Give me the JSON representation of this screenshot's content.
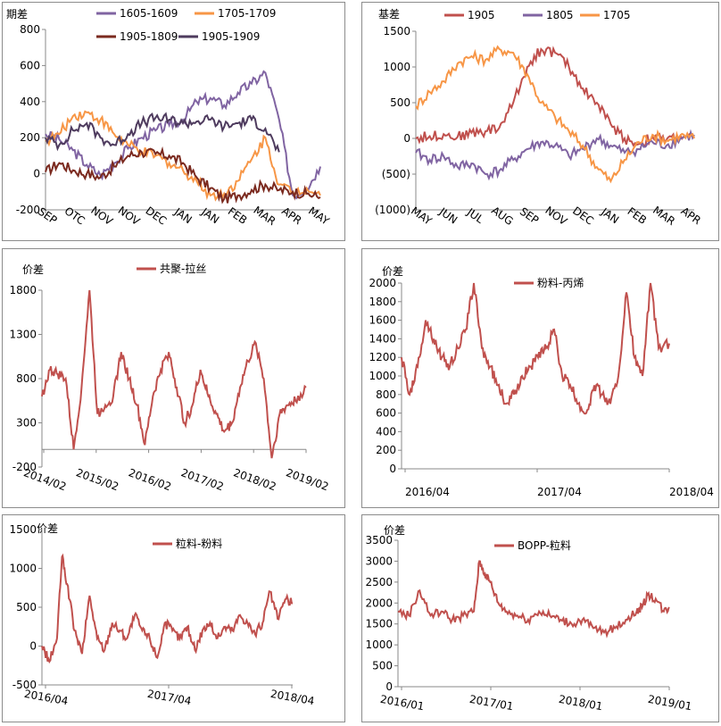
{
  "chart_data": [
    {
      "id": "p1",
      "type": "line",
      "ylabel": "期差",
      "ylim": [
        -200,
        800
      ],
      "yticks": [
        -200,
        0,
        200,
        400,
        600,
        800
      ],
      "xticks": [
        "SEP",
        "OTC",
        "NOV",
        "NOV",
        "DEC",
        "JAN",
        "JAN",
        "FEB",
        "MAR",
        "APR",
        "MAY"
      ],
      "legend_position": "top",
      "series": [
        {
          "name": "1605-1609",
          "color": "#8064a2",
          "x": [
            0,
            0.05,
            0.1,
            0.15,
            0.2,
            0.25,
            0.3,
            0.35,
            0.4,
            0.45,
            0.5,
            0.55,
            0.6,
            0.65,
            0.7,
            0.75,
            0.8,
            0.85,
            0.9,
            0.95,
            1
          ],
          "y": [
            220,
            190,
            130,
            50,
            -10,
            60,
            140,
            200,
            240,
            270,
            300,
            400,
            420,
            380,
            450,
            500,
            560,
            300,
            -120,
            -80,
            40
          ]
        },
        {
          "name": "1705-1709",
          "color": "#f79646",
          "x": [
            0,
            0.05,
            0.1,
            0.15,
            0.2,
            0.25,
            0.3,
            0.35,
            0.4,
            0.45,
            0.5,
            0.55,
            0.6,
            0.65,
            0.7,
            0.75,
            0.8,
            0.85,
            0.9,
            0.95,
            1
          ],
          "y": [
            180,
            220,
            320,
            340,
            300,
            220,
            160,
            120,
            100,
            60,
            20,
            -40,
            -120,
            -110,
            -40,
            80,
            200,
            -60,
            -100,
            -80,
            -120
          ]
        },
        {
          "name": "1905-1809",
          "color": "#7b2a1f",
          "x": [
            0,
            0.05,
            0.1,
            0.15,
            0.2,
            0.25,
            0.3,
            0.35,
            0.4,
            0.45,
            0.5,
            0.55,
            0.6,
            0.65,
            0.7,
            0.75,
            0.8,
            0.85,
            0.9,
            0.95,
            1
          ],
          "y": [
            10,
            60,
            20,
            0,
            -20,
            40,
            100,
            120,
            110,
            100,
            60,
            -20,
            -80,
            -140,
            -120,
            -90,
            -60,
            -90,
            -100,
            -110,
            -130
          ]
        },
        {
          "name": "1905-1909",
          "color": "#4e3b5e",
          "x": [
            0,
            0.05,
            0.1,
            0.15,
            0.2,
            0.25,
            0.3,
            0.35,
            0.4,
            0.45,
            0.5,
            0.55,
            0.6,
            0.65,
            0.7,
            0.75,
            0.8,
            0.85
          ],
          "y": [
            200,
            160,
            240,
            280,
            200,
            160,
            220,
            280,
            310,
            300,
            280,
            290,
            300,
            260,
            280,
            300,
            250,
            120
          ]
        }
      ]
    },
    {
      "id": "p2",
      "type": "line",
      "ylabel": "基差",
      "ylim": [
        -1000,
        1500
      ],
      "yticks": [
        -1000,
        -500,
        0,
        500,
        1000,
        1500
      ],
      "ytick_labels": [
        "(1000)",
        "(500)",
        "0",
        "500",
        "1000",
        "1500"
      ],
      "xticks": [
        "MAY",
        "JUN",
        "JUL",
        "AUG",
        "SEP",
        "NOV",
        "DEC",
        "JAN",
        "FEB",
        "MAR",
        "APR"
      ],
      "legend_position": "top",
      "series": [
        {
          "name": "1905",
          "color": "#c0504d",
          "x": [
            0,
            0.05,
            0.1,
            0.15,
            0.2,
            0.25,
            0.3,
            0.35,
            0.4,
            0.45,
            0.5,
            0.55,
            0.6,
            0.65,
            0.7,
            0.75,
            0.8,
            0.85,
            0.9,
            0.95,
            1
          ],
          "y": [
            0,
            30,
            60,
            20,
            80,
            100,
            150,
            500,
            1000,
            1250,
            1200,
            1000,
            700,
            500,
            200,
            0,
            -80,
            20,
            -20,
            40,
            10
          ]
        },
        {
          "name": "1805",
          "color": "#8064a2",
          "x": [
            0,
            0.05,
            0.1,
            0.15,
            0.2,
            0.25,
            0.3,
            0.35,
            0.4,
            0.45,
            0.5,
            0.55,
            0.6,
            0.65,
            0.7,
            0.75,
            0.8,
            0.85,
            0.9,
            0.95,
            1
          ],
          "y": [
            -200,
            -300,
            -250,
            -400,
            -350,
            -500,
            -450,
            -300,
            -150,
            -50,
            -100,
            -250,
            -150,
            0,
            -100,
            -200,
            -150,
            -50,
            -100,
            0,
            50
          ]
        },
        {
          "name": "1705",
          "color": "#f79646",
          "x": [
            0,
            0.05,
            0.1,
            0.15,
            0.2,
            0.25,
            0.3,
            0.35,
            0.4,
            0.45,
            0.5,
            0.55,
            0.6,
            0.65,
            0.7,
            0.75,
            0.8,
            0.85,
            0.9,
            0.95,
            1
          ],
          "y": [
            450,
            650,
            800,
            1050,
            1150,
            1100,
            1250,
            1200,
            900,
            500,
            300,
            100,
            -100,
            -400,
            -600,
            -300,
            -50,
            50,
            -30,
            40,
            0
          ]
        }
      ]
    },
    {
      "id": "p3",
      "type": "line",
      "ylabel": "价差",
      "ylim": [
        -200,
        1800
      ],
      "yticks": [
        -200,
        300,
        800,
        1300,
        1800
      ],
      "xticks": [
        "2014/02",
        "2015/02",
        "2016/02",
        "2017/02",
        "2018/02",
        "2019/02"
      ],
      "legend_position": "top",
      "series": [
        {
          "name": "共聚-拉丝",
          "color": "#c0504d",
          "x": [
            0,
            0.03,
            0.06,
            0.09,
            0.12,
            0.15,
            0.18,
            0.21,
            0.24,
            0.27,
            0.3,
            0.33,
            0.36,
            0.39,
            0.42,
            0.45,
            0.48,
            0.51,
            0.54,
            0.57,
            0.6,
            0.63,
            0.66,
            0.69,
            0.72,
            0.75,
            0.78,
            0.81,
            0.84,
            0.87,
            0.9,
            0.93,
            0.96,
            1
          ],
          "y": [
            600,
            900,
            850,
            800,
            0,
            700,
            1800,
            400,
            500,
            600,
            1100,
            800,
            500,
            50,
            600,
            900,
            1100,
            700,
            300,
            500,
            900,
            600,
            400,
            200,
            300,
            700,
            1000,
            1200,
            800,
            -100,
            400,
            500,
            550,
            700
          ]
        }
      ]
    },
    {
      "id": "p4",
      "type": "line",
      "ylabel": "价差",
      "ylim": [
        0,
        2000
      ],
      "yticks": [
        0,
        200,
        400,
        600,
        800,
        1000,
        1200,
        1400,
        1600,
        1800,
        2000
      ],
      "xticks": [
        "2016/04",
        "2017/04",
        "2018/04"
      ],
      "legend_position": "top",
      "series": [
        {
          "name": "粉料-丙烯",
          "color": "#c0504d",
          "x": [
            0,
            0.03,
            0.06,
            0.09,
            0.12,
            0.15,
            0.18,
            0.21,
            0.24,
            0.27,
            0.3,
            0.33,
            0.36,
            0.39,
            0.42,
            0.45,
            0.48,
            0.51,
            0.54,
            0.57,
            0.6,
            0.63,
            0.66,
            0.69,
            0.72,
            0.75,
            0.78,
            0.81,
            0.84,
            0.87,
            0.9,
            0.93,
            0.96,
            1
          ],
          "y": [
            1200,
            800,
            1100,
            1600,
            1400,
            1200,
            1100,
            1300,
            1500,
            2000,
            1300,
            1100,
            900,
            700,
            800,
            1000,
            1100,
            1200,
            1300,
            1500,
            1000,
            900,
            700,
            600,
            900,
            800,
            700,
            1000,
            1900,
            1200,
            1000,
            2000,
            1300,
            1350
          ]
        }
      ]
    },
    {
      "id": "p5",
      "type": "line",
      "ylabel": "价差",
      "ylim": [
        -500,
        1500
      ],
      "yticks": [
        -500,
        0,
        500,
        1000,
        1500
      ],
      "xticks": [
        "2016/04",
        "2017/04",
        "2018/04"
      ],
      "legend_position": "top",
      "series": [
        {
          "name": "粒料-粉料",
          "color": "#c0504d",
          "x": [
            0,
            0.03,
            0.06,
            0.08,
            0.1,
            0.13,
            0.16,
            0.19,
            0.22,
            0.25,
            0.28,
            0.31,
            0.34,
            0.37,
            0.4,
            0.43,
            0.46,
            0.49,
            0.52,
            0.55,
            0.58,
            0.61,
            0.64,
            0.67,
            0.7,
            0.73,
            0.76,
            0.79,
            0.82,
            0.85,
            0.88,
            0.91,
            0.94,
            0.97,
            1
          ],
          "y": [
            0,
            -200,
            100,
            1150,
            800,
            200,
            -100,
            650,
            100,
            -50,
            300,
            200,
            100,
            400,
            200,
            100,
            -150,
            300,
            200,
            100,
            250,
            -50,
            200,
            300,
            100,
            250,
            200,
            400,
            300,
            150,
            300,
            700,
            350,
            600,
            550
          ]
        }
      ]
    },
    {
      "id": "p6",
      "type": "line",
      "ylabel": "价差",
      "ylim": [
        0,
        3500
      ],
      "yticks": [
        0,
        500,
        1000,
        1500,
        2000,
        2500,
        3000,
        3500
      ],
      "xticks": [
        "2016/01",
        "2017/01",
        "2018/01",
        "2019/01"
      ],
      "legend_position": "top",
      "series": [
        {
          "name": "BOPP-粒料",
          "color": "#c0504d",
          "x": [
            0,
            0.04,
            0.08,
            0.12,
            0.16,
            0.2,
            0.24,
            0.28,
            0.3,
            0.32,
            0.34,
            0.37,
            0.4,
            0.44,
            0.48,
            0.52,
            0.56,
            0.6,
            0.64,
            0.68,
            0.72,
            0.76,
            0.8,
            0.84,
            0.88,
            0.9,
            0.92,
            0.95,
            0.98,
            1
          ],
          "y": [
            1800,
            1700,
            2300,
            1700,
            1800,
            1600,
            1700,
            1800,
            3000,
            2700,
            2500,
            2000,
            1800,
            1700,
            1600,
            1800,
            1700,
            1600,
            1500,
            1600,
            1400,
            1300,
            1400,
            1600,
            1800,
            1900,
            2200,
            2100,
            1800,
            1900
          ]
        }
      ]
    }
  ]
}
